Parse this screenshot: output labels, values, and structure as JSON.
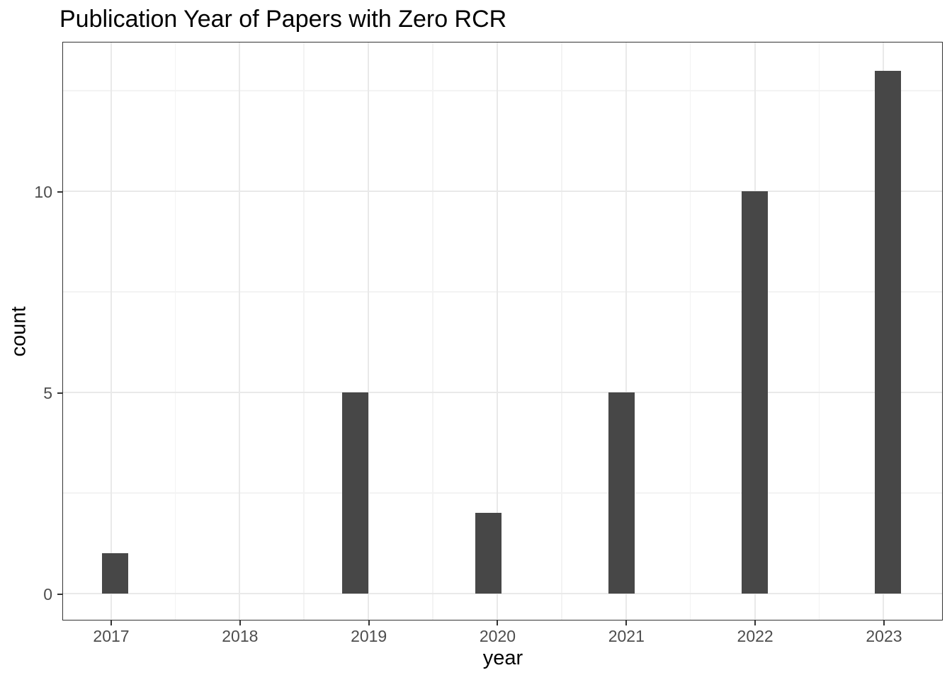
{
  "chart_data": {
    "type": "bar",
    "title": "Publication Year of Papers with Zero RCR",
    "xlabel": "year",
    "ylabel": "count",
    "categories": [
      "2017",
      "2018",
      "2019",
      "2020",
      "2021",
      "2022",
      "2023"
    ],
    "values": [
      1,
      0,
      5,
      2,
      5,
      10,
      13
    ],
    "bars": [
      {
        "year": 2017,
        "count": 1,
        "bin_center": 2017.034
      },
      {
        "year": 2019,
        "count": 5,
        "bin_center": 2018.897
      },
      {
        "year": 2020,
        "count": 2,
        "bin_center": 2019.931
      },
      {
        "year": 2021,
        "count": 5,
        "bin_center": 2020.966
      },
      {
        "year": 2022,
        "count": 10,
        "bin_center": 2022.0
      },
      {
        "year": 2023,
        "count": 13,
        "bin_center": 2023.034
      }
    ],
    "bar_width_years": 0.207,
    "x_tick_values": [
      2017,
      2018,
      2019,
      2020,
      2021,
      2022,
      2023
    ],
    "x_tick_labels": [
      "2017",
      "2018",
      "2019",
      "2020",
      "2021",
      "2022",
      "2023"
    ],
    "y_tick_values": [
      0,
      5,
      10
    ],
    "y_tick_labels": [
      "0",
      "5",
      "10"
    ],
    "x_minor_gridlines": [
      2017.5,
      2018.5,
      2019.5,
      2020.5,
      2021.5,
      2022.5
    ],
    "y_minor_gridlines": [
      2.5,
      7.5,
      12.5
    ],
    "xlim": [
      2016.62,
      2023.45
    ],
    "ylim": [
      -0.64,
      13.71
    ],
    "grid": "on",
    "legend_position": "none",
    "colors": {
      "bar_fill": "#474747",
      "panel_border": "#333333",
      "tick_mark": "#333333",
      "grid_major": "#e9e9e9",
      "grid_minor": "#f3f3f3",
      "tick_label": "#4d4d4d",
      "axis_title": "#000000",
      "title": "#000000",
      "background": "#ffffff"
    }
  }
}
